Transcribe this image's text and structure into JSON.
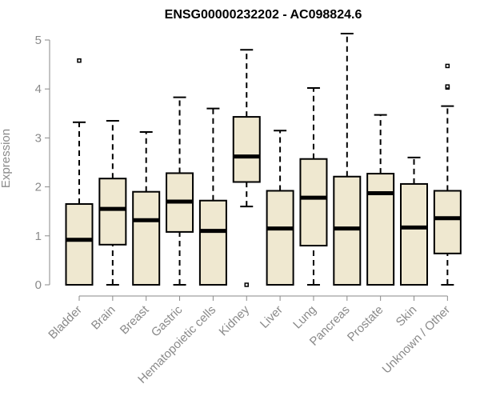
{
  "chart_data": {
    "type": "boxplot",
    "title": "ENSG00000232202 - AC098824.6",
    "xlabel": "",
    "ylabel": "Expression",
    "ylim": [
      0,
      5.2
    ],
    "yticks": [
      0,
      1,
      2,
      3,
      4,
      5
    ],
    "grid": false,
    "legend": "none",
    "colors": {
      "box_fill": "#efe8d0",
      "stroke": "#000000",
      "axis_text": "#8a8a8a"
    },
    "categories": [
      "Bladder",
      "Brain",
      "Breast",
      "Gastric",
      "Hematopoietic cells",
      "Kidney",
      "Liver",
      "Lung",
      "Pancreas",
      "Prostate",
      "Skin",
      "Unknown / Other"
    ],
    "boxes": [
      {
        "category": "Bladder",
        "min": 0,
        "q1": 0,
        "median": 0.92,
        "q3": 1.65,
        "max": 3.32,
        "outliers": [
          4.58
        ]
      },
      {
        "category": "Brain",
        "min": 0,
        "q1": 0.82,
        "median": 1.55,
        "q3": 2.17,
        "max": 3.35,
        "outliers": []
      },
      {
        "category": "Breast",
        "min": 0,
        "q1": 0,
        "median": 1.32,
        "q3": 1.9,
        "max": 3.12,
        "outliers": []
      },
      {
        "category": "Gastric",
        "min": 0,
        "q1": 1.08,
        "median": 1.7,
        "q3": 2.28,
        "max": 3.83,
        "outliers": []
      },
      {
        "category": "Hematopoietic cells",
        "min": 0,
        "q1": 0,
        "median": 1.1,
        "q3": 1.72,
        "max": 3.6,
        "outliers": []
      },
      {
        "category": "Kidney",
        "min": 1.6,
        "q1": 2.1,
        "median": 2.62,
        "q3": 3.43,
        "max": 4.8,
        "outliers": [
          0
        ]
      },
      {
        "category": "Liver",
        "min": 0,
        "q1": 0,
        "median": 1.15,
        "q3": 1.92,
        "max": 3.15,
        "outliers": []
      },
      {
        "category": "Lung",
        "min": 0,
        "q1": 0.8,
        "median": 1.78,
        "q3": 2.57,
        "max": 4.02,
        "outliers": []
      },
      {
        "category": "Pancreas",
        "min": 0,
        "q1": 0,
        "median": 1.15,
        "q3": 2.21,
        "max": 5.13,
        "outliers": []
      },
      {
        "category": "Prostate",
        "min": 0,
        "q1": 0,
        "median": 1.87,
        "q3": 2.27,
        "max": 3.47,
        "outliers": []
      },
      {
        "category": "Skin",
        "min": 0,
        "q1": 0,
        "median": 1.17,
        "q3": 2.06,
        "max": 2.6,
        "outliers": []
      },
      {
        "category": "Unknown / Other",
        "min": 0,
        "q1": 0.64,
        "median": 1.36,
        "q3": 1.92,
        "max": 3.65,
        "outliers": [
          4.03,
          4.05,
          4.47
        ]
      }
    ]
  }
}
